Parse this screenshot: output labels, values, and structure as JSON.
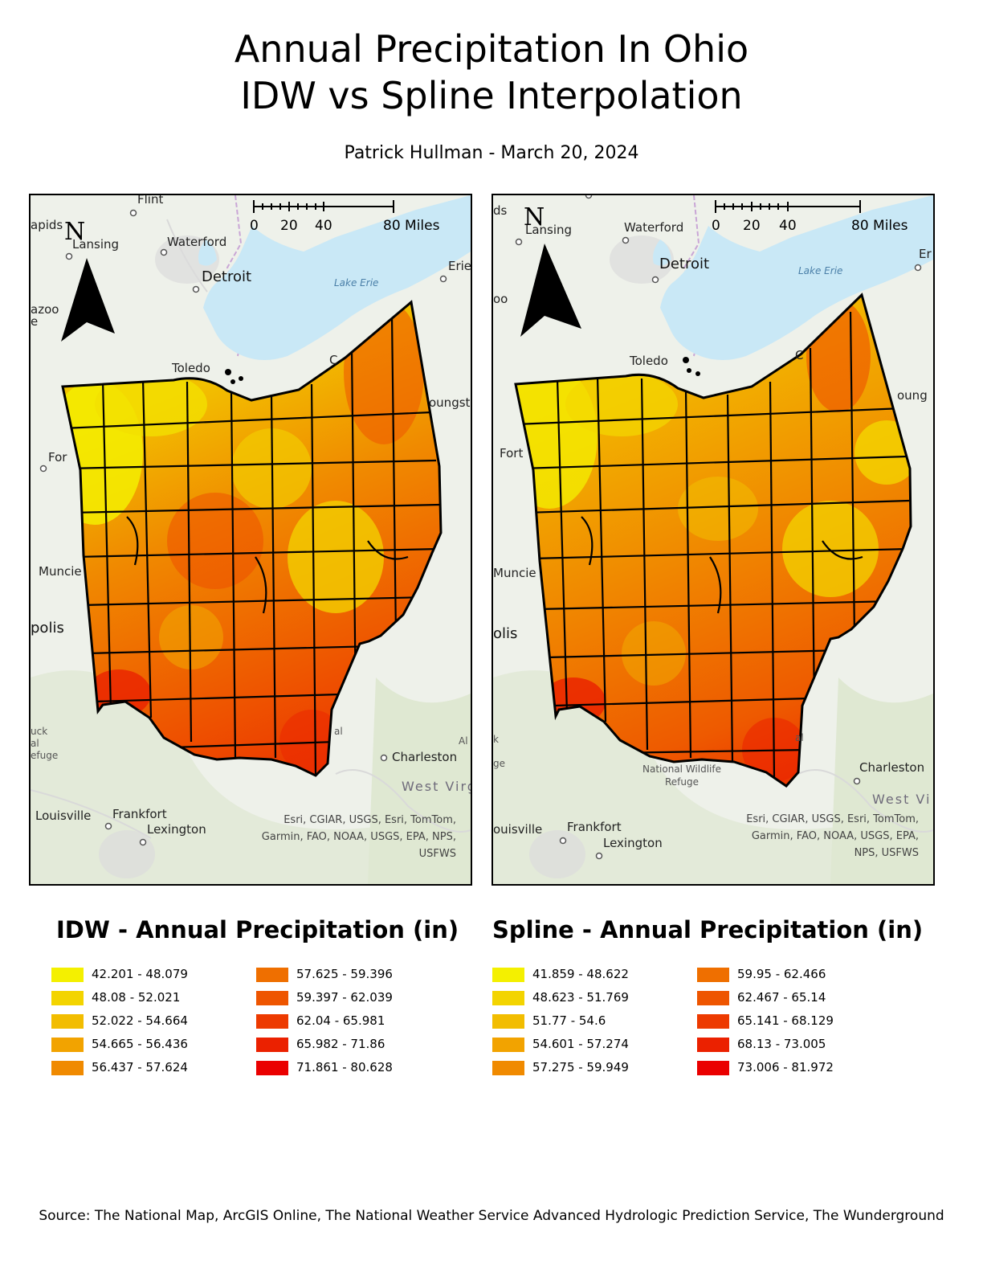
{
  "title_line1": "Annual Precipitation In Ohio",
  "title_line2": "IDW vs Spline Interpolation",
  "subtitle": "Patrick Hullman - March 20, 2024",
  "source": "Source: The National Map, ArcGIS Online, The National Weather Service Advanced Hydrologic Prediction Service, The Wunderground",
  "colors": {
    "water": "#c9e8f6",
    "border": "#000000",
    "basemap": "#eef1ea",
    "ramp": [
      "#f4f000",
      "#f3d400",
      "#f2bd00",
      "#f2a300",
      "#f08a00",
      "#ef6f00",
      "#ee5500",
      "#ed3a00",
      "#eb2100",
      "#ea0000"
    ]
  },
  "maps": {
    "idw": {
      "scale": {
        "ticks": [
          "0",
          "20",
          "40",
          "80 Miles"
        ]
      },
      "north_letter": "N",
      "places": {
        "flint": "Flint",
        "apids": "apids",
        "lansing": "Lansing",
        "waterford": "Waterford",
        "detroit": "Detroit",
        "lake_erie": "Lake Erie",
        "erie": "Erie",
        "azoo": "azoo",
        "e": "e",
        "toledo": "Toledo",
        "c": "C",
        "youngst": "oungst",
        "fort": "For",
        "muncie": "Muncie",
        "polis": "polis",
        "uck": "uck",
        "al": "al",
        "efuge": "efuge",
        "al2": "al",
        "charleston": "Charleston",
        "west_virg": "West Virg",
        "al3": "Al",
        "louisville": "Louisville",
        "frankfort": "Frankfort",
        "lexington": "Lexington"
      },
      "attribution": [
        "Esri, CGIAR, USGS, Esri, TomTom,",
        "Garmin, FAO, NOAA, USGS, EPA, NPS,",
        "USFWS"
      ]
    },
    "spline": {
      "scale": {
        "ticks": [
          "0",
          "20",
          "40",
          "80 Miles"
        ]
      },
      "north_letter": "N",
      "places": {
        "ds": "ds",
        "lansing": "Lansing",
        "waterford": "Waterford",
        "detroit": "Detroit",
        "lake_erie": "Lake Erie",
        "erie": "Er",
        "oo": "oo",
        "toledo": "Toledo",
        "c": "C",
        "youngst": "oung",
        "fort": "Fort",
        "muncie": "Muncie",
        "polis": "olis",
        "k": "k",
        "ge": "ge",
        "al": "al",
        "wildlife": "National Wildlife Refuge",
        "charleston": "Charleston",
        "west_vi": "West Vi",
        "louisville": "ouisville",
        "frankfort": "Frankfort",
        "lexington": "Lexington"
      },
      "attribution": [
        "Esri, CGIAR, USGS, Esri, TomTom,",
        "Garmin, FAO, NOAA, USGS, EPA,",
        "NPS, USFWS"
      ]
    }
  },
  "legends": {
    "idw": {
      "title": "IDW - Annual Precipitation (in)",
      "classes": [
        "42.201 - 48.079",
        "48.08 - 52.021",
        "52.022 - 54.664",
        "54.665 - 56.436",
        "56.437 - 57.624",
        "57.625 - 59.396",
        "59.397 - 62.039",
        "62.04 - 65.981",
        "65.982 - 71.86",
        "71.861 - 80.628"
      ]
    },
    "spline": {
      "title": "Spline - Annual Precipitation (in)",
      "classes": [
        "41.859 - 48.622",
        "48.623 - 51.769",
        "51.77 - 54.6",
        "54.601 - 57.274",
        "57.275 - 59.949",
        "59.95 - 62.466",
        "62.467 - 65.14",
        "65.141 - 68.129",
        "68.13 - 73.005",
        "73.006 - 81.972"
      ]
    }
  }
}
